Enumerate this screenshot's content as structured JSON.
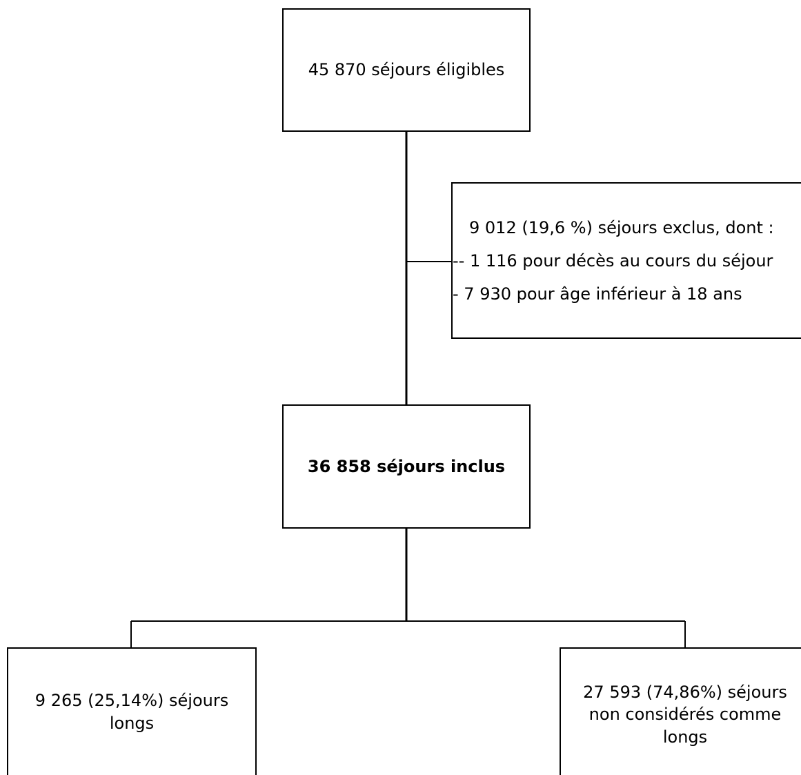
{
  "flowchart": {
    "eligible": "45 870 séjours éligibles",
    "excluded": {
      "header": "9 012 (19,6 %) séjours exclus, dont :",
      "items": [
        "-- 1 116 pour décès au cours du séjour",
        "- 7 930 pour âge inférieur à 18 ans"
      ]
    },
    "included": "36  858 séjours inclus",
    "long_stays": "9 265 (25,14%) séjours longs",
    "not_long_stays": "27 593 (74,86%) séjours non considérés comme longs"
  }
}
